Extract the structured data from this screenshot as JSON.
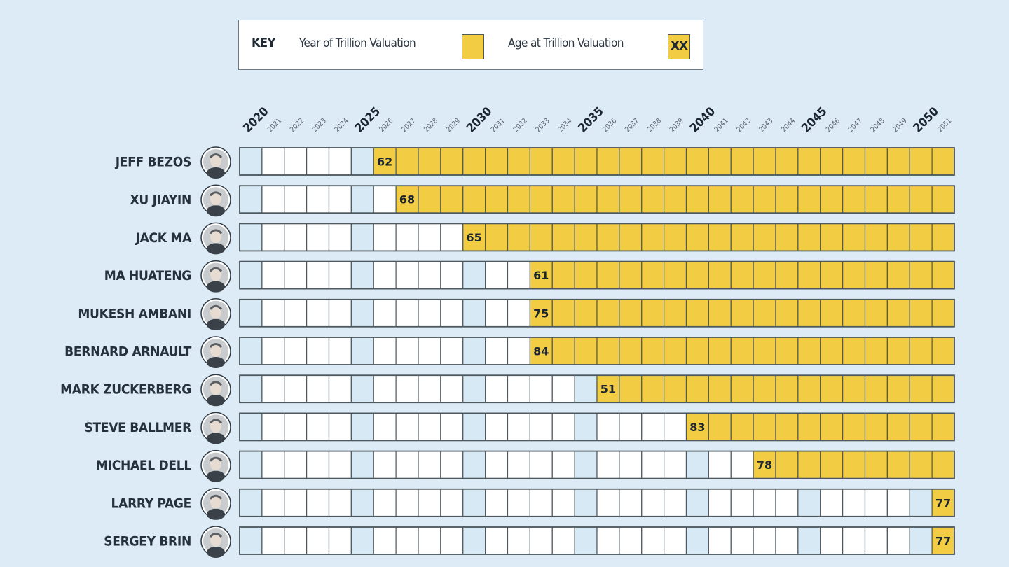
{
  "legend": {
    "key_label": "KEY",
    "year_label": "Year of Trillion Valuation",
    "age_label": "Age at Trillion Valuation",
    "age_swatch_text": "XX"
  },
  "colors": {
    "highlight": "#f2cd44",
    "empty_cell": "#ffffff",
    "major_cell": "#d6e9f4",
    "border": "#4e585f",
    "background": "#dcebf5"
  },
  "chart_data": {
    "type": "table",
    "title": "",
    "years": [
      2020,
      2021,
      2022,
      2023,
      2024,
      2025,
      2026,
      2027,
      2028,
      2029,
      2030,
      2031,
      2032,
      2033,
      2034,
      2035,
      2036,
      2037,
      2038,
      2039,
      2040,
      2041,
      2042,
      2043,
      2044,
      2045,
      2046,
      2047,
      2048,
      2049,
      2050,
      2051
    ],
    "major_years": [
      2020,
      2025,
      2030,
      2035,
      2040,
      2045,
      2050
    ],
    "rows": [
      {
        "name": "JEFF BEZOS",
        "year": 2026,
        "age": "62",
        "avatar": "person-photo-icon"
      },
      {
        "name": "XU JIAYIN",
        "year": 2027,
        "age": "68",
        "avatar": "person-photo-icon"
      },
      {
        "name": "JACK MA",
        "year": 2030,
        "age": "65",
        "avatar": "person-photo-icon"
      },
      {
        "name": "MA HUATENG",
        "year": 2033,
        "age": "61",
        "avatar": "person-photo-icon"
      },
      {
        "name": "MUKESH AMBANI",
        "year": 2033,
        "age": "75",
        "avatar": "person-photo-icon"
      },
      {
        "name": "BERNARD ARNAULT",
        "year": 2033,
        "age": "84",
        "avatar": "person-photo-icon"
      },
      {
        "name": "MARK ZUCKERBERG",
        "year": 2036,
        "age": "51",
        "avatar": "person-photo-icon"
      },
      {
        "name": "STEVE BALLMER",
        "year": 2040,
        "age": "83",
        "avatar": "person-photo-icon"
      },
      {
        "name": "MICHAEL DELL",
        "year": 2043,
        "age": "78",
        "avatar": "person-photo-icon"
      },
      {
        "name": "LARRY PAGE",
        "year": 2051,
        "age": "77",
        "avatar": "person-photo-icon"
      },
      {
        "name": "SERGEY BRIN",
        "year": 2051,
        "age": "77",
        "avatar": "person-photo-icon"
      }
    ]
  }
}
